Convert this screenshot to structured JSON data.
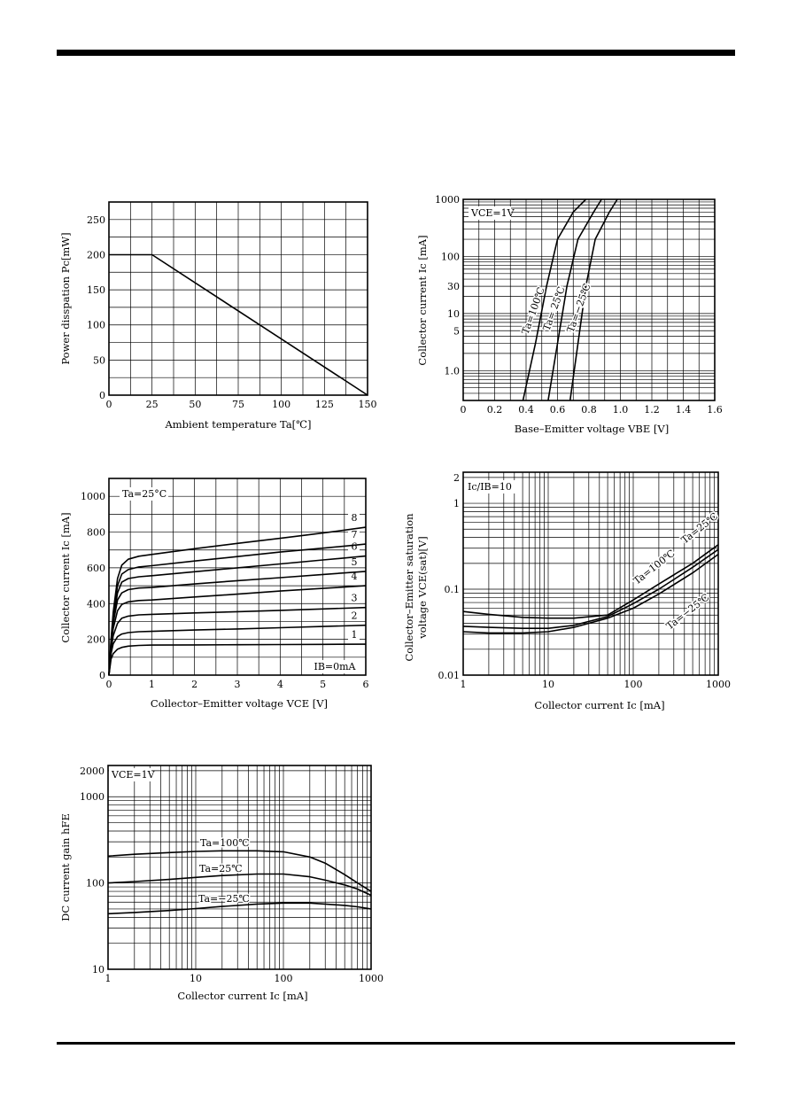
{
  "charts": [
    {
      "type": "line",
      "xlabel": "Ambient temperature Ta[℃]",
      "ylabel": "Power disspation Pc[mW]",
      "xlim": [
        0,
        150
      ],
      "ylim": [
        0,
        275
      ],
      "xticks": [
        0,
        25,
        50,
        75,
        100,
        125,
        150
      ],
      "yticks": [
        0,
        50,
        100,
        150,
        200,
        250
      ],
      "grid": true,
      "series": [
        {
          "x": [
            0,
            25,
            150
          ],
          "y": [
            200,
            200,
            0
          ]
        }
      ]
    },
    {
      "type": "line",
      "xlabel": "Base–Emitter voltage VBE [V]",
      "ylabel": "Collector current Ic [mA]",
      "xlim": [
        0,
        1.6
      ],
      "ylim": [
        0.3,
        1000
      ],
      "yscale": "log",
      "xticks": [
        0,
        0.2,
        0.4,
        0.6,
        0.8,
        1.0,
        1.2,
        1.4,
        1.6
      ],
      "xticklabels": [
        "0",
        "0.2",
        "0.4",
        "0.6",
        "0.8",
        "1.0",
        "1.2",
        "1.4",
        "1.6"
      ],
      "yticks": [
        1.0,
        5,
        10,
        30,
        100,
        1000
      ],
      "yticklabels": [
        "1.0",
        "5",
        "10",
        "30",
        "100",
        "1000"
      ],
      "grid": true,
      "condition": "VCE=1V",
      "series": [
        {
          "name": "Ta=100℃",
          "x": [
            0.38,
            0.46,
            0.53,
            0.6,
            0.7,
            0.78
          ],
          "y": [
            0.3,
            3,
            30,
            200,
            600,
            1000
          ]
        },
        {
          "name": "Ta= 25℃",
          "x": [
            0.54,
            0.6,
            0.66,
            0.73,
            0.83,
            0.88
          ],
          "y": [
            0.3,
            3,
            30,
            200,
            600,
            1000
          ]
        },
        {
          "name": "Ta=−25℃",
          "x": [
            0.68,
            0.73,
            0.78,
            0.84,
            0.93,
            0.98
          ],
          "y": [
            0.3,
            3,
            30,
            200,
            600,
            1000
          ]
        }
      ]
    },
    {
      "type": "line",
      "xlabel": "Collector–Emitter voltage VCE [V]",
      "ylabel": "Collector current Ic [mA]",
      "xlim": [
        0,
        6
      ],
      "ylim": [
        0,
        1100
      ],
      "xticks": [
        0,
        1,
        2,
        3,
        4,
        5,
        6
      ],
      "yticks": [
        0,
        200,
        400,
        600,
        800,
        1000
      ],
      "grid": true,
      "condition": "Ta=25°C",
      "ib_zero_label": "IB=0mA",
      "series": [
        {
          "name": "1",
          "x": [
            0,
            0.05,
            0.1,
            0.2,
            0.3,
            0.45,
            0.7,
            1.0,
            2,
            3,
            4,
            5,
            6
          ],
          "y": [
            0,
            90,
            120,
            145,
            155,
            162,
            166,
            168,
            169,
            170,
            171,
            172,
            173
          ]
        },
        {
          "name": "2",
          "x": [
            0,
            0.05,
            0.1,
            0.2,
            0.3,
            0.45,
            0.7,
            1.0,
            2,
            3,
            4,
            5,
            6
          ],
          "y": [
            0,
            120,
            175,
            215,
            230,
            238,
            243,
            245,
            252,
            258,
            265,
            272,
            279
          ]
        },
        {
          "name": "3",
          "x": [
            0,
            0.05,
            0.1,
            0.2,
            0.3,
            0.45,
            0.7,
            1.0,
            2,
            3,
            4,
            5,
            6
          ],
          "y": [
            0,
            140,
            220,
            290,
            318,
            330,
            337,
            340,
            348,
            355,
            362,
            370,
            378
          ]
        },
        {
          "name": "4",
          "x": [
            0,
            0.05,
            0.1,
            0.2,
            0.3,
            0.45,
            0.7,
            1.0,
            2,
            3,
            4,
            5,
            6
          ],
          "y": [
            0,
            160,
            260,
            360,
            395,
            410,
            417,
            420,
            437,
            453,
            470,
            485,
            500
          ]
        },
        {
          "name": "5",
          "x": [
            0,
            0.05,
            0.1,
            0.2,
            0.3,
            0.45,
            0.7,
            1.0,
            2,
            3,
            4,
            5,
            6
          ],
          "y": [
            0,
            170,
            290,
            420,
            460,
            478,
            487,
            490,
            510,
            528,
            545,
            563,
            580
          ]
        },
        {
          "name": "6",
          "x": [
            0,
            0.05,
            0.1,
            0.2,
            0.3,
            0.45,
            0.7,
            1.0,
            2,
            3,
            4,
            5,
            6
          ],
          "y": [
            0,
            180,
            310,
            460,
            520,
            540,
            550,
            556,
            578,
            600,
            622,
            644,
            666
          ]
        },
        {
          "name": "7",
          "x": [
            0,
            0.05,
            0.1,
            0.2,
            0.3,
            0.45,
            0.7,
            1.0,
            2,
            3,
            4,
            5,
            6
          ],
          "y": [
            0,
            190,
            330,
            500,
            565,
            590,
            605,
            612,
            638,
            663,
            688,
            710,
            733
          ]
        },
        {
          "name": "8",
          "x": [
            0,
            0.05,
            0.1,
            0.2,
            0.3,
            0.45,
            0.7,
            1.0,
            2,
            3,
            4,
            5,
            6
          ],
          "y": [
            0,
            200,
            350,
            540,
            615,
            648,
            665,
            675,
            707,
            737,
            765,
            795,
            827
          ]
        }
      ]
    },
    {
      "type": "line",
      "xlabel": "Collector current Ic [mA]",
      "ylabel_line1": "Collector–Emitter saturation",
      "ylabel_line2": "voltage VCE(sat)[V]",
      "xlim": [
        1,
        1000
      ],
      "ylim": [
        0.01,
        2.3
      ],
      "xscale": "log",
      "yscale": "log",
      "xticks": [
        1,
        10,
        100,
        1000
      ],
      "yticks": [
        0.01,
        0.1,
        1,
        2
      ],
      "yticklabels": [
        "0.01",
        "0.1",
        "1",
        "2"
      ],
      "grid": true,
      "condition": "Ic/IB=10",
      "series": [
        {
          "name": "Ta=100℃",
          "x": [
            1,
            2,
            5,
            10,
            20,
            50,
            100,
            200,
            500,
            1000
          ],
          "y": [
            0.055,
            0.051,
            0.047,
            0.046,
            0.046,
            0.05,
            0.075,
            0.115,
            0.2,
            0.33
          ]
        },
        {
          "name": "Ta=25℃",
          "x": [
            1,
            2,
            5,
            10,
            20,
            50,
            100,
            200,
            500,
            1000
          ],
          "y": [
            0.037,
            0.036,
            0.035,
            0.035,
            0.038,
            0.048,
            0.068,
            0.1,
            0.18,
            0.29
          ]
        },
        {
          "name": "Ta=−25℃",
          "x": [
            1,
            2,
            5,
            10,
            20,
            50,
            100,
            200,
            500,
            1000
          ],
          "y": [
            0.032,
            0.031,
            0.031,
            0.032,
            0.036,
            0.046,
            0.06,
            0.088,
            0.155,
            0.255
          ]
        }
      ]
    },
    {
      "type": "line",
      "xlabel": "Collector current Ic [mA]",
      "ylabel": "DC current gain hFE",
      "xlim": [
        1,
        1000
      ],
      "ylim": [
        10,
        2300
      ],
      "xscale": "log",
      "yscale": "log",
      "xticks": [
        1,
        10,
        100,
        1000
      ],
      "yticks": [
        10,
        100,
        1000,
        2000
      ],
      "grid": true,
      "condition": "VCE=1V",
      "series": [
        {
          "name": "Ta=100℃",
          "x": [
            1,
            2,
            5,
            10,
            20,
            50,
            100,
            200,
            300,
            500,
            700,
            1000
          ],
          "y": [
            205,
            215,
            225,
            232,
            236,
            236,
            230,
            200,
            170,
            125,
            100,
            80
          ]
        },
        {
          "name": "Ta=25℃",
          "x": [
            1,
            2,
            5,
            10,
            20,
            50,
            100,
            200,
            300,
            500,
            700,
            1000
          ],
          "y": [
            100,
            104,
            110,
            116,
            122,
            127,
            127,
            118,
            108,
            95,
            85,
            72
          ]
        },
        {
          "name": "Ta=−25℃",
          "x": [
            1,
            2,
            5,
            10,
            20,
            50,
            100,
            200,
            300,
            500,
            700,
            1000
          ],
          "y": [
            44,
            45.5,
            48,
            50.5,
            53.5,
            57,
            58.5,
            58.5,
            57,
            55,
            53,
            50
          ]
        }
      ]
    }
  ]
}
